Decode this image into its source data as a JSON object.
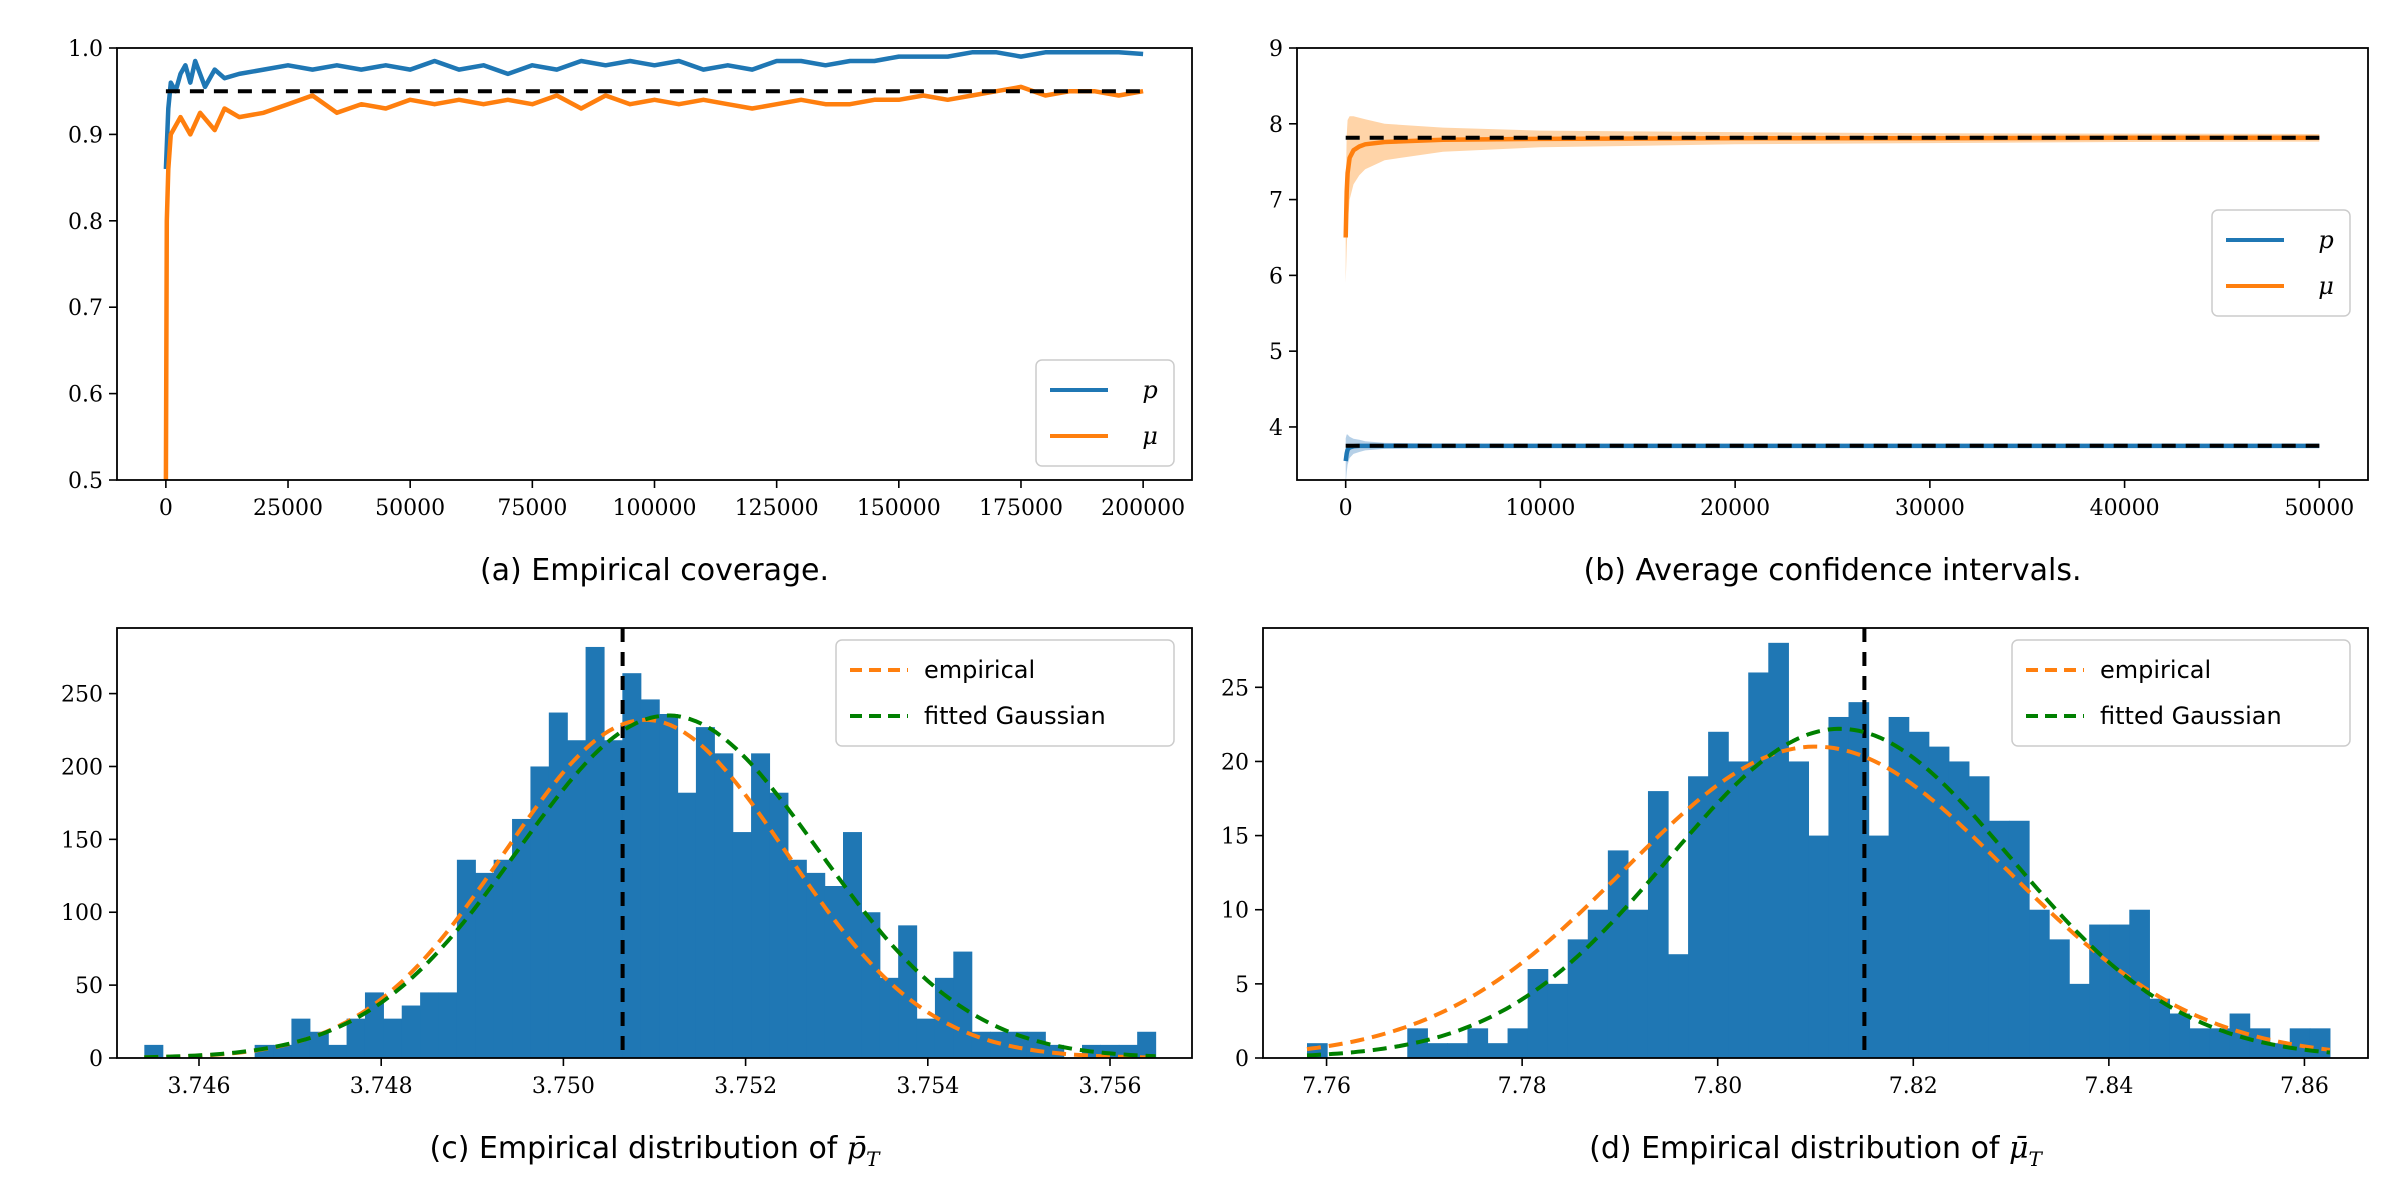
{
  "colors": {
    "blue": "#1f77b4",
    "orange": "#ff7f0e",
    "green": "#008000",
    "black": "#000000",
    "orange_band": "#ffcc99"
  },
  "chart_data": [
    {
      "type": "line",
      "panel": "a",
      "caption": "(a) Empirical coverage.",
      "xlim": [
        -10000,
        210000
      ],
      "ylim": [
        0.5,
        1.0
      ],
      "xticks": [
        0,
        25000,
        50000,
        75000,
        100000,
        125000,
        150000,
        175000,
        200000
      ],
      "yticks": [
        0.5,
        0.6,
        0.7,
        0.8,
        0.9,
        1.0
      ],
      "xtick_labels": [
        "0",
        "25000",
        "50000",
        "75000",
        "100000",
        "125000",
        "150000",
        "175000",
        "200000"
      ],
      "ytick_labels": [
        "0.5",
        "0.6",
        "0.7",
        "0.8",
        "0.9",
        "1.0"
      ],
      "reference_line": {
        "y": 0.95,
        "x": [
          0,
          200000
        ],
        "style": "dashed"
      },
      "legend": [
        "p",
        "μ"
      ],
      "legend_location": "lower-right",
      "series": [
        {
          "name": "p",
          "color": "blue",
          "x": [
            0,
            500,
            1000,
            2000,
            3000,
            4000,
            5000,
            6000,
            8000,
            10000,
            12000,
            15000,
            20000,
            25000,
            30000,
            35000,
            40000,
            45000,
            50000,
            55000,
            60000,
            65000,
            70000,
            75000,
            80000,
            85000,
            90000,
            95000,
            100000,
            105000,
            110000,
            115000,
            120000,
            125000,
            130000,
            135000,
            140000,
            145000,
            150000,
            155000,
            160000,
            165000,
            170000,
            175000,
            180000,
            185000,
            190000,
            195000,
            200000
          ],
          "values": [
            0.86,
            0.93,
            0.96,
            0.95,
            0.97,
            0.98,
            0.96,
            0.985,
            0.955,
            0.975,
            0.965,
            0.97,
            0.975,
            0.98,
            0.975,
            0.98,
            0.975,
            0.98,
            0.975,
            0.985,
            0.975,
            0.98,
            0.97,
            0.98,
            0.975,
            0.985,
            0.98,
            0.985,
            0.98,
            0.985,
            0.975,
            0.98,
            0.975,
            0.985,
            0.985,
            0.98,
            0.985,
            0.985,
            0.99,
            0.99,
            0.99,
            0.995,
            0.995,
            0.99,
            0.995,
            0.995,
            0.995,
            0.995,
            0.993
          ]
        },
        {
          "name": "μ",
          "color": "orange",
          "x": [
            0,
            200,
            500,
            1000,
            2000,
            3000,
            5000,
            7000,
            10000,
            12000,
            15000,
            20000,
            25000,
            30000,
            35000,
            40000,
            45000,
            50000,
            55000,
            60000,
            65000,
            70000,
            75000,
            80000,
            85000,
            90000,
            95000,
            100000,
            105000,
            110000,
            115000,
            120000,
            125000,
            130000,
            135000,
            140000,
            145000,
            150000,
            155000,
            160000,
            165000,
            170000,
            175000,
            180000,
            185000,
            190000,
            195000,
            200000
          ],
          "values": [
            0.5,
            0.8,
            0.86,
            0.9,
            0.91,
            0.92,
            0.9,
            0.925,
            0.905,
            0.93,
            0.92,
            0.925,
            0.935,
            0.945,
            0.925,
            0.935,
            0.93,
            0.94,
            0.935,
            0.94,
            0.935,
            0.94,
            0.935,
            0.945,
            0.93,
            0.945,
            0.935,
            0.94,
            0.935,
            0.94,
            0.935,
            0.93,
            0.935,
            0.94,
            0.935,
            0.935,
            0.94,
            0.94,
            0.945,
            0.94,
            0.945,
            0.95,
            0.955,
            0.945,
            0.95,
            0.95,
            0.945,
            0.95
          ]
        }
      ]
    },
    {
      "type": "line",
      "panel": "b",
      "caption": "(b) Average confidence intervals.",
      "xlim": [
        -2500,
        52500
      ],
      "ylim": [
        3.3,
        9.0
      ],
      "xticks": [
        0,
        10000,
        20000,
        30000,
        40000,
        50000
      ],
      "yticks": [
        4,
        5,
        6,
        7,
        8,
        9
      ],
      "xtick_labels": [
        "0",
        "10000",
        "20000",
        "30000",
        "40000",
        "50000"
      ],
      "ytick_labels": [
        "4",
        "5",
        "6",
        "7",
        "8",
        "9"
      ],
      "reference_lines": [
        {
          "y": 7.815,
          "x": [
            0,
            50000
          ]
        },
        {
          "y": 3.7506,
          "x": [
            0,
            50000
          ]
        }
      ],
      "legend": [
        "p",
        "μ"
      ],
      "legend_location": "center-right",
      "series": [
        {
          "name": "p",
          "color": "blue",
          "x": [
            0,
            50,
            100,
            200,
            400,
            700,
            1000,
            2000,
            5000,
            10000,
            20000,
            30000,
            40000,
            50000
          ],
          "values": [
            3.55,
            3.65,
            3.7,
            3.73,
            3.745,
            3.75,
            3.75,
            3.75,
            3.75,
            3.75,
            3.75,
            3.75,
            3.75,
            3.75
          ],
          "band_half_width": [
            0.3,
            0.25,
            0.2,
            0.14,
            0.1,
            0.08,
            0.06,
            0.04,
            0.03,
            0.02,
            0.015,
            0.01,
            0.01,
            0.01
          ]
        },
        {
          "name": "μ",
          "color": "orange",
          "x": [
            0,
            50,
            100,
            200,
            400,
            700,
            1000,
            2000,
            5000,
            10000,
            20000,
            30000,
            40000,
            50000
          ],
          "values": [
            6.5,
            7.1,
            7.35,
            7.55,
            7.65,
            7.7,
            7.73,
            7.76,
            7.79,
            7.8,
            7.81,
            7.81,
            7.815,
            7.815
          ],
          "band_half_width": [
            0.6,
            0.75,
            0.7,
            0.55,
            0.45,
            0.38,
            0.33,
            0.24,
            0.16,
            0.11,
            0.08,
            0.065,
            0.055,
            0.05
          ]
        }
      ]
    },
    {
      "type": "histogram",
      "panel": "c",
      "caption": "(c) Empirical distribution of",
      "caption_math": "p̄",
      "caption_sub": "T",
      "xlim": [
        3.7451,
        3.7569
      ],
      "ylim": [
        0,
        295
      ],
      "xticks": [
        3.746,
        3.748,
        3.75,
        3.752,
        3.754,
        3.756
      ],
      "yticks": [
        0,
        50,
        100,
        150,
        200,
        250
      ],
      "xtick_labels": [
        "3.746",
        "3.748",
        "3.750",
        "3.752",
        "3.754",
        "3.756"
      ],
      "ytick_labels": [
        "0",
        "50",
        "100",
        "150",
        "200",
        "250"
      ],
      "bin_start": 3.7454,
      "bin_end": 3.7565,
      "bin_counts": [
        9,
        0,
        0,
        0,
        0,
        0,
        9,
        9,
        27,
        18,
        9,
        27,
        45,
        27,
        36,
        45,
        45,
        136,
        127,
        136,
        164,
        200,
        237,
        218,
        282,
        218,
        264,
        246,
        236,
        182,
        227,
        209,
        155,
        209,
        182,
        136,
        127,
        118,
        155,
        100,
        55,
        91,
        27,
        55,
        73,
        18,
        18,
        18,
        18,
        9,
        0,
        9,
        9,
        9,
        18
      ],
      "vline": 3.75065,
      "legend": [
        "empirical",
        "fitted Gaussian"
      ],
      "legend_location": "upper-right",
      "curves": [
        {
          "name": "empirical",
          "color": "orange",
          "peak": 232,
          "center": 3.7509,
          "sigma": 0.00155
        },
        {
          "name": "fitted Gaussian",
          "color": "green",
          "peak": 235,
          "center": 3.75115,
          "sigma": 0.00165
        }
      ]
    },
    {
      "type": "histogram",
      "panel": "d",
      "caption": "(d) Empirical distribution of",
      "caption_math": "μ̄",
      "caption_sub": "T",
      "xlim": [
        7.7535,
        7.8665
      ],
      "ylim": [
        0,
        29
      ],
      "xticks": [
        7.76,
        7.78,
        7.8,
        7.82,
        7.84,
        7.86
      ],
      "yticks": [
        0,
        5,
        10,
        15,
        20,
        25
      ],
      "xtick_labels": [
        "7.76",
        "7.78",
        "7.80",
        "7.82",
        "7.84",
        "7.86"
      ],
      "ytick_labels": [
        "0",
        "5",
        "10",
        "15",
        "20",
        "25"
      ],
      "bin_start": 7.758,
      "bin_end": 7.8626,
      "bin_counts": [
        1,
        0,
        0,
        0,
        0,
        2,
        1,
        1,
        2,
        1,
        2,
        6,
        5,
        8,
        10,
        14,
        10,
        18,
        7,
        19,
        22,
        20,
        26,
        28,
        20,
        15,
        23,
        24,
        15,
        23,
        22,
        21,
        20,
        19,
        16,
        16,
        10,
        8,
        5,
        9,
        9,
        10,
        4,
        3,
        2,
        2,
        3,
        2,
        1,
        2,
        2
      ],
      "vline": 7.815,
      "legend": [
        "empirical",
        "fitted Gaussian"
      ],
      "legend_location": "upper-right",
      "curves": [
        {
          "name": "empirical",
          "color": "orange",
          "peak": 21,
          "center": 7.81,
          "sigma": 0.0195
        },
        {
          "name": "fitted Gaussian",
          "color": "green",
          "peak": 22.2,
          "center": 7.8125,
          "sigma": 0.0175
        }
      ]
    }
  ]
}
